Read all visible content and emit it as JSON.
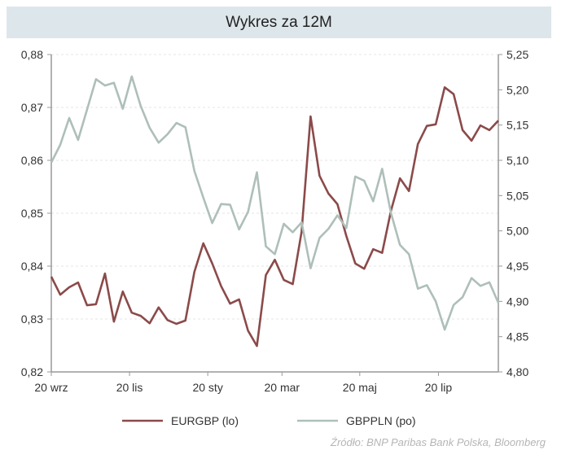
{
  "chart_data": {
    "type": "line",
    "title": "Wykres za 12M",
    "x_tick_labels": [
      "20 wrz",
      "20 lis",
      "20 sty",
      "20 mar",
      "20 maj",
      "20 lip"
    ],
    "y_left": {
      "ylim": [
        0.82,
        0.88
      ],
      "ticks": [
        "0,82",
        "0,83",
        "0,84",
        "0,85",
        "0,86",
        "0,87",
        "0,88"
      ]
    },
    "y_right": {
      "ylim": [
        4.8,
        5.25
      ],
      "ticks": [
        "4,80",
        "4,85",
        "4,90",
        "4,95",
        "5,00",
        "5,05",
        "5,10",
        "5,15",
        "5,20",
        "5,25"
      ]
    },
    "grid": "horizontal dashed",
    "legend_placement": "bottom",
    "series": [
      {
        "name": "EURGBP (lo)",
        "axis": "left",
        "color": "#8b4a4a",
        "values": [
          0.838,
          0.8346,
          0.836,
          0.8369,
          0.8326,
          0.8328,
          0.8386,
          0.8295,
          0.8352,
          0.8312,
          0.8306,
          0.8292,
          0.8322,
          0.8298,
          0.8291,
          0.8297,
          0.8389,
          0.8443,
          0.8405,
          0.8362,
          0.8329,
          0.8337,
          0.8278,
          0.8249,
          0.8383,
          0.8412,
          0.8374,
          0.8366,
          0.8465,
          0.8683,
          0.8571,
          0.8537,
          0.8517,
          0.8457,
          0.8405,
          0.8395,
          0.8432,
          0.8425,
          0.8505,
          0.8566,
          0.8542,
          0.8631,
          0.8665,
          0.8668,
          0.8738,
          0.8725,
          0.8657,
          0.8637,
          0.8666,
          0.8657,
          0.8675
        ]
      },
      {
        "name": "GBPPLN (po)",
        "axis": "right",
        "color": "#aebfb8",
        "values": [
          5.097,
          5.122,
          5.16,
          5.129,
          5.172,
          5.215,
          5.206,
          5.21,
          5.173,
          5.219,
          5.177,
          5.146,
          5.125,
          5.137,
          5.153,
          5.147,
          5.085,
          5.047,
          5.011,
          5.038,
          5.037,
          5.002,
          5.027,
          5.083,
          4.978,
          4.967,
          5.01,
          4.998,
          5.012,
          4.947,
          4.99,
          5.003,
          5.022,
          5.004,
          5.077,
          5.071,
          5.042,
          5.088,
          5.025,
          4.98,
          4.967,
          4.918,
          4.923,
          4.9,
          4.86,
          4.895,
          4.906,
          4.933,
          4.922,
          4.927,
          4.898
        ]
      }
    ]
  },
  "source": "Źródło:  BNP Paribas Bank Polska, Bloomberg"
}
